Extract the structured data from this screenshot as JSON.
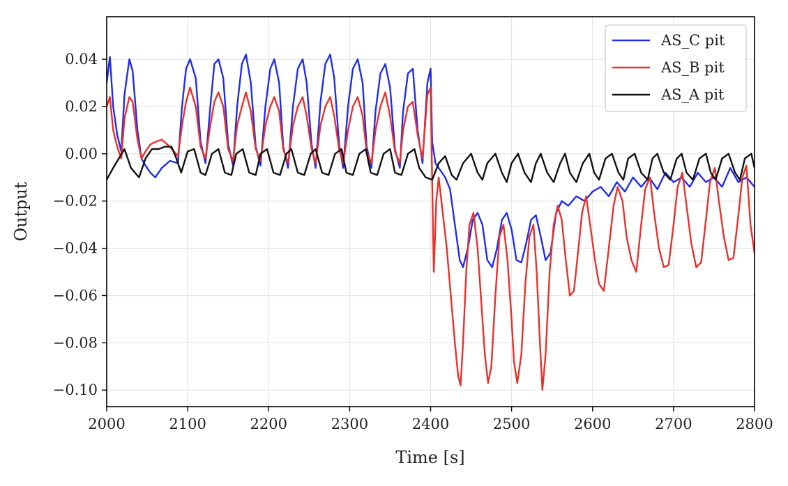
{
  "chart_data": {
    "type": "line",
    "title": "",
    "xlabel": "Time [s]",
    "ylabel": "Output",
    "xlim": [
      2000,
      2800
    ],
    "ylim": [
      -0.107,
      0.058
    ],
    "xticks": [
      2000,
      2100,
      2200,
      2300,
      2400,
      2500,
      2600,
      2700,
      2800
    ],
    "xtick_labels": [
      "2000",
      "2100",
      "2200",
      "2300",
      "2400",
      "2500",
      "2600",
      "2700",
      "2800"
    ],
    "yticks": [
      0.04,
      0.02,
      0.0,
      -0.02,
      -0.04,
      -0.06,
      -0.08,
      -0.1
    ],
    "ytick_labels": [
      "0.04",
      "0.02",
      "0.00",
      "−0.02",
      "−0.04",
      "−0.06",
      "−0.08",
      "−0.10"
    ],
    "grid": true,
    "legend_position": "top-right",
    "series": [
      {
        "name": "AS_C pit",
        "color": "#1f2cf0",
        "x": [
          2000,
          2004,
          2008,
          2013,
          2018,
          2022,
          2028,
          2032,
          2038,
          2043,
          2048,
          2054,
          2060,
          2068,
          2078,
          2088,
          2093,
          2098,
          2103,
          2110,
          2116,
          2122,
          2128,
          2133,
          2138,
          2144,
          2150,
          2156,
          2161,
          2167,
          2172,
          2178,
          2184,
          2190,
          2196,
          2202,
          2207,
          2213,
          2218,
          2224,
          2230,
          2236,
          2242,
          2247,
          2253,
          2258,
          2264,
          2270,
          2276,
          2281,
          2287,
          2292,
          2298,
          2304,
          2310,
          2316,
          2321,
          2327,
          2332,
          2338,
          2344,
          2350,
          2356,
          2362,
          2366,
          2372,
          2378,
          2384,
          2390,
          2396,
          2400,
          2402,
          2406,
          2410,
          2414,
          2418,
          2424,
          2430,
          2436,
          2440,
          2446,
          2452,
          2458,
          2464,
          2470,
          2476,
          2482,
          2488,
          2494,
          2500,
          2506,
          2512,
          2518,
          2524,
          2530,
          2536,
          2542,
          2548,
          2555,
          2562,
          2570,
          2580,
          2590,
          2600,
          2610,
          2620,
          2630,
          2640,
          2650,
          2660,
          2670,
          2680,
          2690,
          2700,
          2710,
          2720,
          2730,
          2740,
          2750,
          2760,
          2770,
          2780,
          2790,
          2800
        ],
        "y": [
          0.03,
          0.041,
          0.02,
          0.008,
          0.001,
          0.025,
          0.04,
          0.035,
          0.01,
          -0.002,
          -0.005,
          -0.008,
          -0.01,
          -0.006,
          -0.003,
          -0.004,
          0.02,
          0.036,
          0.04,
          0.032,
          0.005,
          -0.004,
          0.02,
          0.038,
          0.04,
          0.032,
          0.004,
          -0.005,
          0.02,
          0.038,
          0.042,
          0.03,
          0.003,
          -0.005,
          0.02,
          0.036,
          0.04,
          0.03,
          0.003,
          -0.006,
          0.02,
          0.036,
          0.04,
          0.03,
          0.004,
          -0.006,
          0.022,
          0.038,
          0.042,
          0.032,
          0.004,
          -0.006,
          0.02,
          0.036,
          0.04,
          0.03,
          0.003,
          -0.006,
          0.018,
          0.034,
          0.038,
          0.028,
          0.002,
          -0.006,
          0.018,
          0.034,
          0.036,
          0.01,
          -0.004,
          0.03,
          0.036,
          0.005,
          -0.004,
          -0.006,
          -0.008,
          -0.01,
          -0.015,
          -0.03,
          -0.045,
          -0.048,
          -0.04,
          -0.028,
          -0.025,
          -0.03,
          -0.045,
          -0.048,
          -0.04,
          -0.028,
          -0.025,
          -0.032,
          -0.045,
          -0.046,
          -0.038,
          -0.028,
          -0.026,
          -0.035,
          -0.045,
          -0.042,
          -0.025,
          -0.02,
          -0.022,
          -0.018,
          -0.02,
          -0.016,
          -0.014,
          -0.018,
          -0.012,
          -0.016,
          -0.01,
          -0.014,
          -0.01,
          -0.015,
          -0.008,
          -0.012,
          -0.01,
          -0.014,
          -0.008,
          -0.012,
          -0.01,
          -0.014,
          -0.006,
          -0.012,
          -0.01,
          -0.014
        ]
      },
      {
        "name": "AS_B pit",
        "color": "#e8312c",
        "x": [
          2000,
          2004,
          2008,
          2013,
          2018,
          2022,
          2028,
          2032,
          2038,
          2043,
          2048,
          2054,
          2060,
          2068,
          2078,
          2088,
          2093,
          2098,
          2103,
          2110,
          2116,
          2122,
          2128,
          2133,
          2138,
          2144,
          2150,
          2156,
          2161,
          2167,
          2172,
          2178,
          2184,
          2190,
          2196,
          2202,
          2207,
          2213,
          2218,
          2224,
          2230,
          2236,
          2242,
          2247,
          2253,
          2258,
          2264,
          2270,
          2276,
          2281,
          2287,
          2292,
          2298,
          2304,
          2310,
          2316,
          2321,
          2327,
          2332,
          2338,
          2344,
          2350,
          2356,
          2362,
          2366,
          2372,
          2378,
          2384,
          2390,
          2396,
          2400,
          2402,
          2404,
          2407,
          2410,
          2415,
          2420,
          2425,
          2430,
          2434,
          2437,
          2440,
          2444,
          2448,
          2453,
          2458,
          2463,
          2467,
          2471,
          2475,
          2480,
          2485,
          2490,
          2495,
          2500,
          2503,
          2507,
          2512,
          2517,
          2522,
          2527,
          2531,
          2535,
          2538,
          2542,
          2547,
          2552,
          2557,
          2562,
          2567,
          2572,
          2577,
          2582,
          2587,
          2592,
          2597,
          2603,
          2608,
          2614,
          2620,
          2626,
          2631,
          2637,
          2642,
          2648,
          2654,
          2660,
          2665,
          2671,
          2676,
          2682,
          2688,
          2694,
          2700,
          2705,
          2711,
          2716,
          2722,
          2728,
          2734,
          2740,
          2745,
          2751,
          2756,
          2762,
          2768,
          2774,
          2780,
          2785,
          2790,
          2795,
          2800
        ],
        "y": [
          0.02,
          0.024,
          0.01,
          0.003,
          -0.002,
          0.015,
          0.024,
          0.022,
          0.006,
          -0.002,
          0.001,
          0.004,
          0.005,
          0.006,
          0.003,
          -0.001,
          0.012,
          0.022,
          0.028,
          0.02,
          0.003,
          -0.002,
          0.012,
          0.022,
          0.026,
          0.02,
          0.002,
          -0.003,
          0.012,
          0.02,
          0.026,
          0.018,
          0.002,
          -0.003,
          0.012,
          0.02,
          0.024,
          0.018,
          0.002,
          -0.004,
          0.012,
          0.02,
          0.024,
          0.016,
          0.002,
          -0.004,
          0.012,
          0.02,
          0.024,
          0.016,
          0.002,
          -0.004,
          0.01,
          0.02,
          0.024,
          0.016,
          0.001,
          -0.004,
          0.01,
          0.02,
          0.026,
          0.016,
          0.001,
          -0.004,
          0.01,
          0.02,
          0.022,
          0.008,
          -0.002,
          0.025,
          0.028,
          -0.012,
          -0.05,
          -0.02,
          -0.01,
          -0.025,
          -0.04,
          -0.06,
          -0.08,
          -0.094,
          -0.098,
          -0.08,
          -0.05,
          -0.03,
          -0.025,
          -0.04,
          -0.065,
          -0.085,
          -0.097,
          -0.09,
          -0.06,
          -0.035,
          -0.03,
          -0.045,
          -0.07,
          -0.088,
          -0.097,
          -0.085,
          -0.055,
          -0.035,
          -0.03,
          -0.05,
          -0.08,
          -0.1,
          -0.085,
          -0.05,
          -0.03,
          -0.022,
          -0.028,
          -0.045,
          -0.06,
          -0.058,
          -0.042,
          -0.025,
          -0.018,
          -0.03,
          -0.045,
          -0.055,
          -0.058,
          -0.04,
          -0.022,
          -0.014,
          -0.02,
          -0.035,
          -0.045,
          -0.05,
          -0.03,
          -0.015,
          -0.01,
          -0.025,
          -0.04,
          -0.048,
          -0.047,
          -0.03,
          -0.014,
          -0.008,
          -0.022,
          -0.038,
          -0.048,
          -0.046,
          -0.028,
          -0.012,
          -0.006,
          -0.02,
          -0.035,
          -0.045,
          -0.044,
          -0.026,
          -0.01,
          -0.005,
          -0.03,
          -0.042
        ]
      },
      {
        "name": "AS_A pit",
        "color": "#111111",
        "x": [
          2000,
          2008,
          2015,
          2022,
          2030,
          2040,
          2048,
          2056,
          2064,
          2072,
          2080,
          2086,
          2092,
          2100,
          2108,
          2116,
          2122,
          2130,
          2138,
          2146,
          2154,
          2160,
          2168,
          2176,
          2184,
          2190,
          2198,
          2206,
          2214,
          2222,
          2228,
          2236,
          2244,
          2252,
          2258,
          2266,
          2274,
          2282,
          2290,
          2296,
          2304,
          2312,
          2320,
          2326,
          2334,
          2342,
          2350,
          2356,
          2364,
          2372,
          2380,
          2386,
          2394,
          2402,
          2410,
          2418,
          2426,
          2432,
          2440,
          2450,
          2458,
          2464,
          2470,
          2480,
          2488,
          2494,
          2500,
          2508,
          2516,
          2524,
          2530,
          2536,
          2544,
          2552,
          2560,
          2566,
          2572,
          2580,
          2588,
          2596,
          2602,
          2608,
          2616,
          2624,
          2632,
          2638,
          2644,
          2652,
          2660,
          2668,
          2674,
          2680,
          2688,
          2696,
          2704,
          2710,
          2716,
          2724,
          2732,
          2740,
          2746,
          2752,
          2760,
          2768,
          2776,
          2782,
          2788,
          2796,
          2800
        ],
        "y": [
          -0.011,
          -0.006,
          -0.002,
          0.002,
          -0.006,
          -0.01,
          -0.002,
          0.002,
          0.002,
          0.003,
          0.003,
          -0.002,
          -0.008,
          0.001,
          0.002,
          -0.008,
          -0.009,
          0.0,
          0.002,
          -0.008,
          -0.009,
          0.0,
          0.002,
          -0.008,
          -0.009,
          0.0,
          0.002,
          -0.008,
          -0.009,
          0.0,
          0.002,
          -0.008,
          -0.009,
          0.0,
          0.002,
          -0.008,
          -0.009,
          0.0,
          0.002,
          -0.008,
          -0.009,
          0.0,
          0.002,
          -0.008,
          -0.009,
          0.0,
          0.002,
          -0.008,
          -0.009,
          0.0,
          0.002,
          -0.006,
          -0.01,
          -0.011,
          -0.004,
          -0.001,
          -0.009,
          -0.011,
          -0.004,
          0.0,
          -0.008,
          -0.011,
          -0.004,
          0.0,
          -0.008,
          -0.012,
          -0.004,
          0.0,
          -0.008,
          -0.012,
          -0.004,
          0.0,
          -0.008,
          -0.012,
          -0.004,
          0.0,
          -0.008,
          -0.012,
          -0.004,
          0.0,
          -0.008,
          -0.011,
          -0.002,
          0.0,
          -0.008,
          -0.011,
          -0.002,
          0.0,
          -0.008,
          -0.011,
          -0.002,
          0.0,
          -0.008,
          -0.011,
          -0.002,
          0.0,
          -0.008,
          -0.011,
          -0.002,
          0.0,
          -0.008,
          -0.011,
          -0.002,
          0.0,
          -0.008,
          -0.011,
          -0.002,
          0.0,
          -0.006
        ]
      }
    ]
  }
}
